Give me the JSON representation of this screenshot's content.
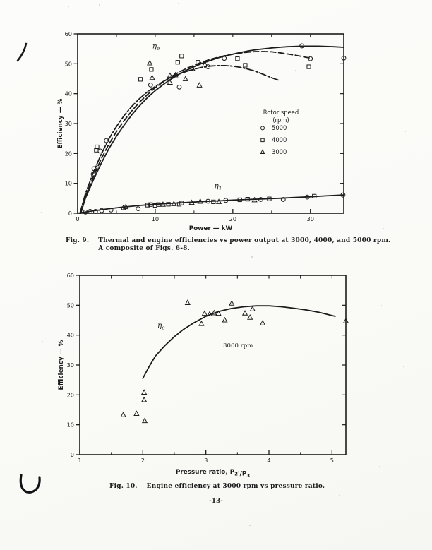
{
  "page": {
    "number_label": "-13-",
    "ink_color": "#1c1c1c",
    "paper_color": "#fbfbf8"
  },
  "fig9": {
    "caption_label": "Fig. 9.",
    "caption_line1": "Thermal and engine efficiencies vs power output at 3000, 4000, and 5000 rpm.",
    "caption_line2": "A composite of Figs. 6-8."
  },
  "fig10": {
    "caption_label": "Fig. 10.",
    "caption_line1": "Engine efficiency at 3000 rpm vs pressure ratio."
  },
  "chart_data": [
    {
      "id": "fig9",
      "type": "line",
      "title": "",
      "xlabel": "Power — kW",
      "ylabel": "Efficiency — %",
      "xlim": [
        0,
        34.3
      ],
      "ylim": [
        0,
        60
      ],
      "x_major_ticks": [
        0,
        10,
        20,
        30
      ],
      "x_minor_ticks": [
        5,
        15,
        25
      ],
      "x_top_ticks": [
        5,
        10,
        15,
        20,
        25,
        30
      ],
      "y_major_ticks": [
        0,
        10,
        20,
        30,
        40,
        50,
        60
      ],
      "y_right_ticks": [
        10,
        20,
        30,
        40,
        50
      ],
      "grid": false,
      "legend": {
        "title_line1": "Rotor speed",
        "title_line2": "(rpm)",
        "position": "inside-right",
        "items": [
          {
            "marker": "circle",
            "label": "5000"
          },
          {
            "marker": "square",
            "label": "4000"
          },
          {
            "marker": "triangle",
            "label": "3000"
          }
        ]
      },
      "annotations": [
        {
          "base": "η",
          "sub": "e",
          "x": 10.1,
          "y": 55.2
        },
        {
          "base": "η",
          "sub": "T",
          "x": 18.1,
          "y": 8.4
        }
      ],
      "series": [
        {
          "name": "engine efficiency 5000 rpm",
          "style": "solid",
          "points": [
            [
              0.4,
              0
            ],
            [
              1,
              5
            ],
            [
              2,
              11
            ],
            [
              3,
              16.5
            ],
            [
              4,
              21.5
            ],
            [
              5,
              25.8
            ],
            [
              6,
              29.5
            ],
            [
              7,
              33
            ],
            [
              8,
              36
            ],
            [
              9,
              38.7
            ],
            [
              10,
              41
            ],
            [
              11,
              43
            ],
            [
              12,
              44.8
            ],
            [
              13,
              46.4
            ],
            [
              14,
              47.8
            ],
            [
              15,
              49
            ],
            [
              16,
              50.1
            ],
            [
              17,
              51
            ],
            [
              18,
              51.9
            ],
            [
              19,
              52.6
            ],
            [
              20,
              53.2
            ],
            [
              21,
              53.8
            ],
            [
              22,
              54.3
            ],
            [
              23,
              54.7
            ],
            [
              24,
              55
            ],
            [
              25,
              55.3
            ],
            [
              26,
              55.5
            ],
            [
              27,
              55.7
            ],
            [
              28,
              55.8
            ],
            [
              29,
              55.9
            ],
            [
              30,
              55.9
            ],
            [
              31,
              55.9
            ],
            [
              32,
              55.8
            ],
            [
              33,
              55.7
            ],
            [
              34.3,
              55.5
            ]
          ]
        },
        {
          "name": "engine efficiency 4000 rpm",
          "style": "dashed",
          "points": [
            [
              0.4,
              0
            ],
            [
              1,
              5.5
            ],
            [
              2,
              12
            ],
            [
              3,
              18
            ],
            [
              4,
              23
            ],
            [
              5,
              27.3
            ],
            [
              6,
              31
            ],
            [
              7,
              34.3
            ],
            [
              8,
              37.2
            ],
            [
              9,
              39.7
            ],
            [
              10,
              42
            ],
            [
              11,
              43.9
            ],
            [
              12,
              45.6
            ],
            [
              13,
              47.1
            ],
            [
              14,
              48.4
            ],
            [
              15,
              49.5
            ],
            [
              16,
              50.5
            ],
            [
              17,
              51.4
            ],
            [
              18,
              52.1
            ],
            [
              19,
              52.7
            ],
            [
              20,
              53.2
            ],
            [
              21,
              53.6
            ],
            [
              22,
              53.9
            ],
            [
              23,
              54.1
            ],
            [
              24,
              54.1
            ],
            [
              25,
              54
            ],
            [
              26,
              53.7
            ],
            [
              27,
              53.3
            ],
            [
              28,
              52.9
            ],
            [
              29,
              52.4
            ],
            [
              30,
              51.9
            ]
          ]
        },
        {
          "name": "engine efficiency 3000 rpm",
          "style": "dashdot",
          "points": [
            [
              0.3,
              0
            ],
            [
              1,
              6.5
            ],
            [
              2,
              13.5
            ],
            [
              3,
              19.5
            ],
            [
              4,
              24.8
            ],
            [
              5,
              29
            ],
            [
              6,
              32.7
            ],
            [
              7,
              35.8
            ],
            [
              8,
              38.4
            ],
            [
              9,
              40.6
            ],
            [
              10,
              42.4
            ],
            [
              11,
              44
            ],
            [
              12,
              45.4
            ],
            [
              13,
              46.5
            ],
            [
              14,
              47.4
            ],
            [
              15,
              48.2
            ],
            [
              16,
              48.8
            ],
            [
              17,
              49.2
            ],
            [
              18,
              49.4
            ],
            [
              19,
              49.4
            ],
            [
              20,
              49.2
            ],
            [
              21,
              48.8
            ],
            [
              22,
              48.2
            ],
            [
              23,
              47.4
            ],
            [
              24,
              46.4
            ],
            [
              25,
              45.3
            ],
            [
              26,
              44.4
            ]
          ]
        },
        {
          "name": "thermal efficiency composite",
          "style": "solid",
          "points": [
            [
              0,
              0
            ],
            [
              2,
              0.8
            ],
            [
              4,
              1.5
            ],
            [
              6,
              2.1
            ],
            [
              8,
              2.6
            ],
            [
              10,
              3
            ],
            [
              12,
              3.3
            ],
            [
              14,
              3.6
            ],
            [
              16,
              3.9
            ],
            [
              18,
              4.1
            ],
            [
              20,
              4.4
            ],
            [
              22,
              4.6
            ],
            [
              24,
              4.8
            ],
            [
              26,
              5
            ],
            [
              28,
              5.3
            ],
            [
              30,
              5.5
            ],
            [
              32,
              5.8
            ],
            [
              34.3,
              6.1
            ]
          ]
        }
      ],
      "scatter": [
        {
          "marker": "circle",
          "rpm": "5000",
          "points": [
            [
              1,
              0.4
            ],
            [
              1.6,
              0.6
            ],
            [
              2.3,
              0.6
            ],
            [
              3.1,
              0.9
            ],
            [
              4.3,
              1.1
            ],
            [
              7.8,
              1.5
            ],
            [
              16.8,
              4
            ],
            [
              19.1,
              4.3
            ],
            [
              23.6,
              4.6
            ],
            [
              26.5,
              4.6
            ],
            [
              29.6,
              5.4
            ],
            [
              34.2,
              6.1
            ],
            [
              2,
              13.1
            ],
            [
              2.1,
              14.9
            ],
            [
              2.9,
              20.8
            ],
            [
              3.7,
              24.3
            ],
            [
              9.4,
              42.9
            ],
            [
              13.1,
              42.2
            ],
            [
              16.8,
              49
            ],
            [
              18.9,
              51.8
            ],
            [
              28.9,
              56
            ],
            [
              30,
              51.7
            ],
            [
              34.3,
              51.9
            ]
          ]
        },
        {
          "marker": "square",
          "rpm": "4000",
          "points": [
            [
              2.4,
              21.1
            ],
            [
              2.5,
              22.2
            ],
            [
              8.1,
              44.8
            ],
            [
              9.5,
              48.1
            ],
            [
              12.9,
              50.5
            ],
            [
              13.4,
              52.6
            ],
            [
              15.5,
              50.5
            ],
            [
              20.6,
              51.7
            ],
            [
              21.6,
              49.5
            ],
            [
              29.8,
              49
            ],
            [
              9,
              2.7
            ],
            [
              9.4,
              2.9
            ],
            [
              10,
              2.6
            ],
            [
              10.4,
              2.9
            ],
            [
              11.7,
              3
            ],
            [
              13.1,
              3
            ],
            [
              13.4,
              3.4
            ],
            [
              17.5,
              3.8
            ],
            [
              20.9,
              4.5
            ],
            [
              21.9,
              4.7
            ],
            [
              24.7,
              4.8
            ],
            [
              30.5,
              5.7
            ]
          ]
        },
        {
          "marker": "triangle",
          "rpm": "3000",
          "points": [
            [
              9.3,
              50.2
            ],
            [
              9.6,
              45.3
            ],
            [
              11.9,
              46
            ],
            [
              12.6,
              46.2
            ],
            [
              11.9,
              43.7
            ],
            [
              13.9,
              44.9
            ],
            [
              14.8,
              48.3
            ],
            [
              16.4,
              49.8
            ],
            [
              15.7,
              42.8
            ],
            [
              5.9,
              1.8
            ],
            [
              6.2,
              2.1
            ],
            [
              11,
              2.9
            ],
            [
              12.4,
              3.1
            ],
            [
              14.7,
              3.5
            ],
            [
              15.8,
              3.9
            ],
            [
              18.2,
              3.8
            ],
            [
              22.8,
              4.4
            ]
          ]
        }
      ]
    },
    {
      "id": "fig10",
      "type": "line",
      "title": "",
      "xlabel_rich": [
        {
          "t": "Pressure ratio, P"
        },
        {
          "t": "2",
          "sub": true
        },
        {
          "t": "'"
        },
        {
          "t": "/P"
        },
        {
          "t": "3",
          "sub": true
        }
      ],
      "ylabel": "Efficiency — %",
      "xlim": [
        1,
        5.22
      ],
      "ylim": [
        0,
        60
      ],
      "x_major_ticks": [
        1,
        2,
        3,
        4,
        5
      ],
      "x_minor_ticks": [
        1.5,
        2.5,
        3.5,
        4.5
      ],
      "x_top_ticks": [
        1.5,
        2,
        2.5,
        3,
        3.5,
        4,
        4.5,
        5
      ],
      "y_major_ticks": [
        0,
        10,
        20,
        30,
        40,
        50,
        60
      ],
      "y_right_ticks": [
        10,
        20,
        30,
        40,
        50
      ],
      "grid": false,
      "annotations": [
        {
          "base": "η",
          "sub": "e",
          "x": 2.29,
          "y": 42.5
        },
        {
          "text": "3000 rpm",
          "x": 3.51,
          "y": 35.9
        }
      ],
      "series": [
        {
          "name": "engine efficiency 3000 rpm fit",
          "style": "solid",
          "points": [
            [
              2,
              25.5
            ],
            [
              2.1,
              29.5
            ],
            [
              2.2,
              33
            ],
            [
              2.35,
              36.5
            ],
            [
              2.5,
              39.5
            ],
            [
              2.65,
              42
            ],
            [
              2.8,
              44
            ],
            [
              3,
              46.3
            ],
            [
              3.2,
              47.9
            ],
            [
              3.4,
              48.9
            ],
            [
              3.6,
              49.5
            ],
            [
              3.8,
              49.8
            ],
            [
              4,
              49.8
            ],
            [
              4.2,
              49.5
            ],
            [
              4.4,
              49
            ],
            [
              4.6,
              48.4
            ],
            [
              4.8,
              47.6
            ],
            [
              5.05,
              46.3
            ]
          ]
        }
      ],
      "scatter": [
        {
          "marker": "triangle",
          "rpm": "3000",
          "points": [
            [
              1.69,
              13.3
            ],
            [
              1.9,
              13.7
            ],
            [
              2.02,
              20.8
            ],
            [
              2.02,
              18.3
            ],
            [
              2.03,
              11.3
            ],
            [
              2.71,
              50.8
            ],
            [
              2.93,
              43.8
            ],
            [
              2.98,
              47.2
            ],
            [
              3.06,
              47
            ],
            [
              3.13,
              47.4
            ],
            [
              3.2,
              47.2
            ],
            [
              3.3,
              45
            ],
            [
              3.41,
              50.6
            ],
            [
              3.62,
              47.3
            ],
            [
              3.7,
              45.9
            ],
            [
              3.74,
              48.7
            ],
            [
              3.9,
              44
            ],
            [
              5.22,
              44.7
            ]
          ]
        }
      ]
    }
  ]
}
